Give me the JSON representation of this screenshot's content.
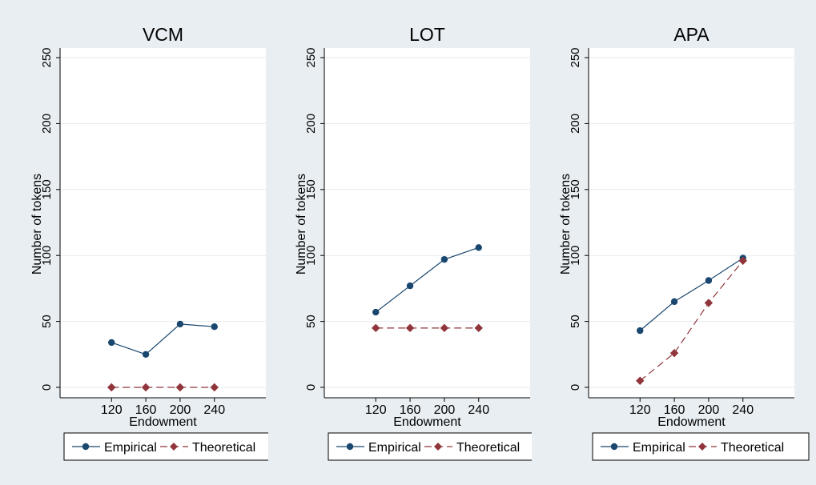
{
  "colors": {
    "outer_background": "#e9eef2",
    "plot_background": "#ffffff",
    "gridline": "#e6ebef",
    "empirical": "#1a476f",
    "theoretical": "#90353b",
    "text": "#000000"
  },
  "chart_data": [
    {
      "type": "line",
      "title": "VCM",
      "xlabel": "Endowment",
      "ylabel": "Number of tokens",
      "x": [
        120,
        160,
        200,
        240
      ],
      "xticks": [
        "120",
        "160",
        "200",
        "240"
      ],
      "xlim": [
        60,
        300
      ],
      "ylim": [
        0,
        250
      ],
      "yticks": [
        "0",
        "50",
        "100",
        "150",
        "200",
        "250"
      ],
      "grid": true,
      "legend": "bottom",
      "series": [
        {
          "name": "Empirical",
          "marker": "circle",
          "dash": "solid",
          "values": [
            34,
            25,
            48,
            46
          ]
        },
        {
          "name": "Theoretical",
          "marker": "diamond",
          "dash": "dashed",
          "values": [
            0,
            0,
            0,
            0
          ]
        }
      ]
    },
    {
      "type": "line",
      "title": "LOT",
      "xlabel": "Endowment",
      "ylabel": "Number of tokens",
      "x": [
        120,
        160,
        200,
        240
      ],
      "xticks": [
        "120",
        "160",
        "200",
        "240"
      ],
      "xlim": [
        60,
        300
      ],
      "ylim": [
        0,
        250
      ],
      "yticks": [
        "0",
        "50",
        "100",
        "150",
        "200",
        "250"
      ],
      "grid": true,
      "legend": "bottom",
      "series": [
        {
          "name": "Empirical",
          "marker": "circle",
          "dash": "solid",
          "values": [
            57,
            77,
            97,
            106
          ]
        },
        {
          "name": "Theoretical",
          "marker": "diamond",
          "dash": "dashed",
          "values": [
            45,
            45,
            45,
            45
          ]
        }
      ]
    },
    {
      "type": "line",
      "title": "APA",
      "xlabel": "Endowment",
      "ylabel": "Number of tokens",
      "x": [
        120,
        160,
        200,
        240
      ],
      "xticks": [
        "120",
        "160",
        "200",
        "240"
      ],
      "xlim": [
        60,
        300
      ],
      "ylim": [
        0,
        250
      ],
      "yticks": [
        "0",
        "50",
        "100",
        "150",
        "200",
        "250"
      ],
      "grid": true,
      "legend": "bottom",
      "series": [
        {
          "name": "Empirical",
          "marker": "circle",
          "dash": "solid",
          "values": [
            43,
            65,
            81,
            98
          ]
        },
        {
          "name": "Theoretical",
          "marker": "diamond",
          "dash": "dashed",
          "values": [
            5,
            26,
            64,
            96
          ]
        }
      ]
    }
  ]
}
